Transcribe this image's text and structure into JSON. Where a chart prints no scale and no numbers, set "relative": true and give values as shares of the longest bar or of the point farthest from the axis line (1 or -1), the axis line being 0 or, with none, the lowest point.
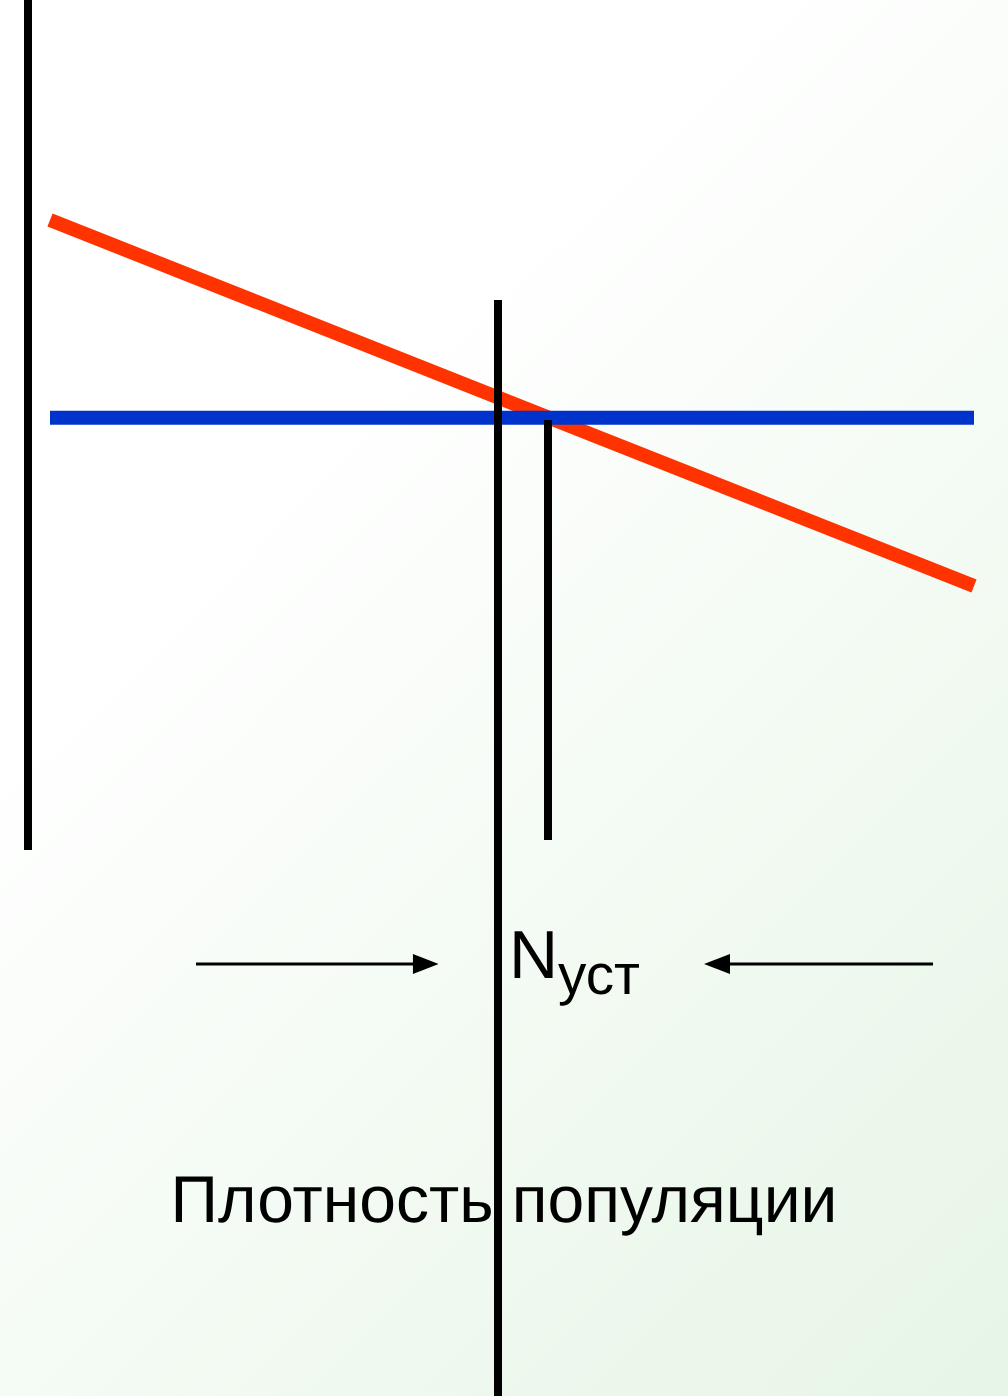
{
  "chart_data": {
    "type": "line",
    "relative": true,
    "categories": [
      null,
      null
    ],
    "series": [
      {
        "color": "#ff3300",
        "values": [
          1,
          0
        ]
      },
      {
        "color": "#0033cc",
        "values": [
          0.46,
          0.46
        ]
      }
    ],
    "annotations": [
      "N$_{уст}$",
      "Плотность популяции"
    ],
    "marker": "none",
    "line_style": "solid"
  }
}
